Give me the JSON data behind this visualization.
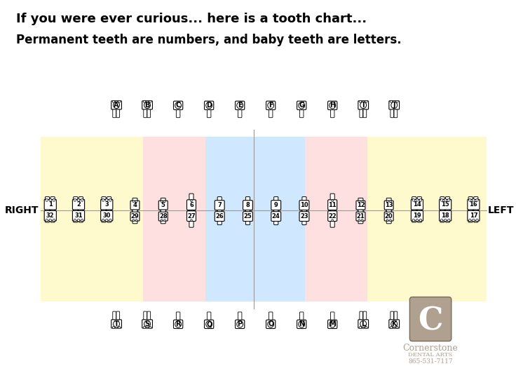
{
  "title1": "If you were ever curious... here is a tooth chart...",
  "title2": "Permanent teeth are numbers, and baby teeth are letters.",
  "bg_color": "#ffffff",
  "right_label": "RIGHT",
  "left_label": "LEFT",
  "upper_permanent": [
    1,
    2,
    3,
    4,
    5,
    6,
    7,
    8,
    9,
    10,
    11,
    12,
    13,
    14,
    15,
    16
  ],
  "lower_permanent": [
    32,
    31,
    30,
    29,
    28,
    27,
    26,
    25,
    24,
    23,
    22,
    21,
    20,
    19,
    18,
    17
  ],
  "upper_baby": [
    "A",
    "B",
    "C",
    "D",
    "E",
    "F",
    "G",
    "H",
    "I",
    "J"
  ],
  "lower_baby": [
    "T",
    "S",
    "R",
    "Q",
    "P",
    "O",
    "N",
    "M",
    "L",
    "K"
  ],
  "center_line_color": "#888888",
  "yellow_color": "#fffacd",
  "blue_color": "#d0e8ff",
  "pink_color": "#ffe0e0",
  "logo_text1": "Cornerstone",
  "logo_text2": "DENTAL ARTS",
  "logo_text3": "865-531-7117",
  "logo_color": "#b0a090"
}
